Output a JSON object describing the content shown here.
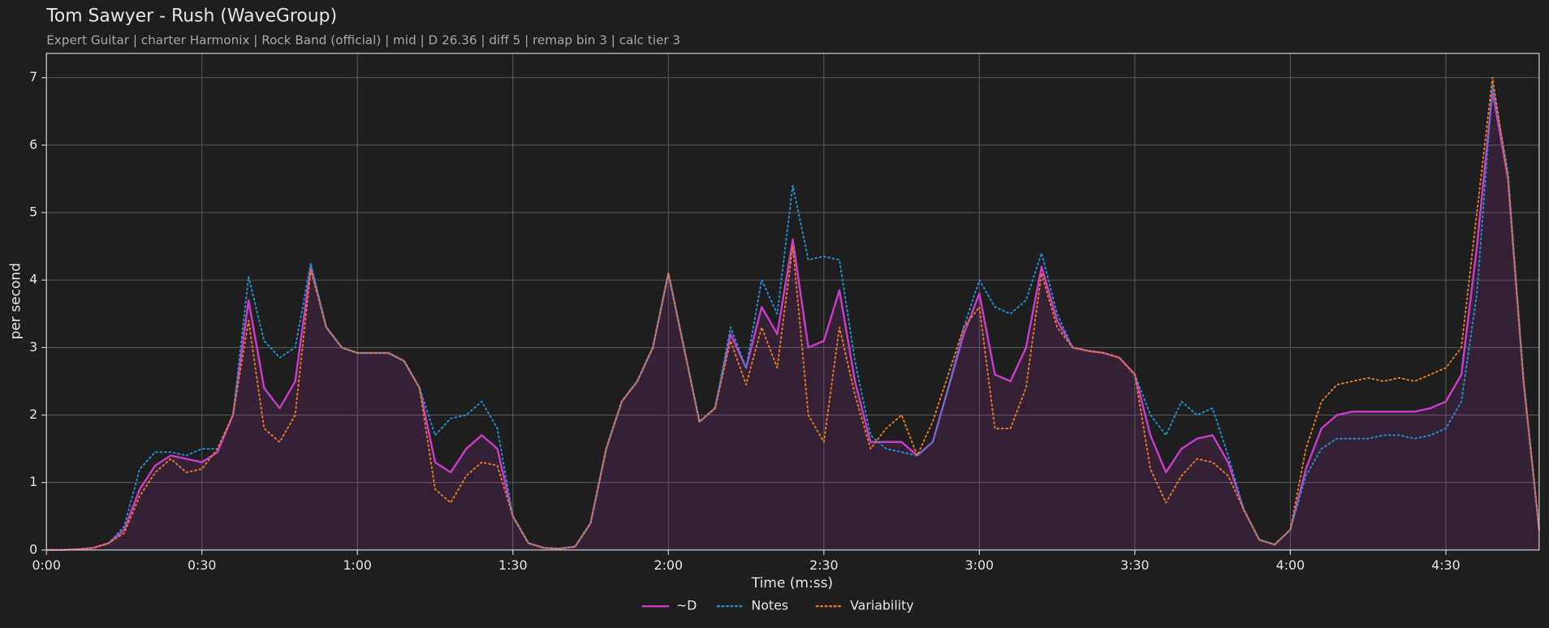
{
  "chart_data": {
    "type": "line",
    "title": "Tom Sawyer - Rush (WaveGroup)",
    "subtitle": "Expert Guitar  |  charter Harmonix  |  Rock Band (official)  |  mid  |  D 26.36  |  diff 5  |  remap bin 3  |  calc tier 3",
    "xlabel": "Time (m:ss)",
    "ylabel": "per second",
    "x": [
      0,
      3,
      6,
      9,
      12,
      15,
      18,
      21,
      24,
      27,
      30,
      33,
      36,
      39,
      42,
      45,
      48,
      51,
      54,
      57,
      60,
      63,
      66,
      69,
      72,
      75,
      78,
      81,
      84,
      87,
      90,
      93,
      96,
      99,
      102,
      105,
      108,
      111,
      114,
      117,
      120,
      123,
      126,
      129,
      132,
      135,
      138,
      141,
      144,
      147,
      150,
      153,
      156,
      159,
      162,
      165,
      168,
      171,
      174,
      177,
      180,
      183,
      186,
      189,
      192,
      195,
      198,
      201,
      204,
      207,
      210,
      213,
      216,
      219,
      222,
      225,
      228,
      231,
      234,
      237,
      240,
      243,
      246,
      249,
      252,
      255,
      258,
      261,
      264,
      267,
      270,
      273,
      276,
      279,
      282,
      285,
      288
    ],
    "series": [
      {
        "name": "~D",
        "color": "#c83cc8",
        "style": "solid",
        "fill": true,
        "values": [
          0,
          0,
          0.01,
          0.03,
          0.1,
          0.3,
          0.9,
          1.25,
          1.4,
          1.35,
          1.3,
          1.45,
          2.0,
          3.7,
          2.4,
          2.1,
          2.5,
          4.2,
          3.3,
          3.0,
          2.92,
          2.92,
          2.92,
          2.8,
          2.4,
          1.3,
          1.15,
          1.5,
          1.7,
          1.5,
          0.5,
          0.1,
          0.03,
          0.02,
          0.05,
          0.4,
          1.5,
          2.2,
          2.5,
          3.0,
          4.1,
          3.0,
          1.9,
          2.1,
          3.2,
          2.7,
          3.6,
          3.2,
          4.6,
          3.0,
          3.1,
          3.85,
          2.5,
          1.6,
          1.6,
          1.6,
          1.4,
          1.6,
          2.4,
          3.2,
          3.8,
          2.6,
          2.5,
          3.0,
          4.2,
          3.4,
          3.0,
          2.95,
          2.92,
          2.85,
          2.6,
          1.7,
          1.15,
          1.5,
          1.65,
          1.7,
          1.3,
          0.6,
          0.15,
          0.08,
          0.3,
          1.2,
          1.8,
          2.0,
          2.05,
          2.05,
          2.05,
          2.05,
          2.05,
          2.1,
          2.2,
          2.6,
          4.5,
          6.8,
          5.5,
          2.5,
          0.3
        ]
      },
      {
        "name": "Notes",
        "color": "#2290d0",
        "style": "dotted",
        "fill": false,
        "values": [
          0,
          0,
          0.01,
          0.03,
          0.1,
          0.35,
          1.2,
          1.45,
          1.45,
          1.4,
          1.5,
          1.5,
          2.0,
          4.05,
          3.1,
          2.85,
          3.0,
          4.25,
          3.3,
          3.0,
          2.92,
          2.92,
          2.92,
          2.8,
          2.4,
          1.7,
          1.95,
          2.0,
          2.2,
          1.8,
          0.5,
          0.1,
          0.03,
          0.02,
          0.05,
          0.4,
          1.5,
          2.2,
          2.5,
          3.0,
          4.1,
          3.0,
          1.9,
          2.1,
          3.3,
          2.7,
          4.0,
          3.5,
          5.4,
          4.3,
          4.35,
          4.3,
          2.8,
          1.7,
          1.5,
          1.45,
          1.4,
          1.6,
          2.4,
          3.3,
          4.0,
          3.6,
          3.5,
          3.7,
          4.4,
          3.5,
          3.0,
          2.95,
          2.92,
          2.85,
          2.6,
          2.0,
          1.7,
          2.2,
          2.0,
          2.1,
          1.4,
          0.6,
          0.15,
          0.08,
          0.3,
          1.1,
          1.5,
          1.65,
          1.65,
          1.65,
          1.7,
          1.7,
          1.65,
          1.7,
          1.8,
          2.2,
          3.8,
          6.9,
          5.6,
          2.5,
          0.3
        ]
      },
      {
        "name": "Variability",
        "color": "#e57a22",
        "style": "dotted",
        "fill": false,
        "values": [
          0,
          0,
          0.01,
          0.03,
          0.1,
          0.25,
          0.8,
          1.15,
          1.35,
          1.15,
          1.2,
          1.5,
          2.0,
          3.4,
          1.8,
          1.6,
          2.0,
          4.15,
          3.3,
          3.0,
          2.92,
          2.92,
          2.92,
          2.8,
          2.4,
          0.9,
          0.7,
          1.1,
          1.3,
          1.25,
          0.5,
          0.1,
          0.03,
          0.02,
          0.05,
          0.4,
          1.5,
          2.2,
          2.5,
          3.0,
          4.1,
          3.0,
          1.9,
          2.1,
          3.1,
          2.45,
          3.3,
          2.7,
          4.5,
          2.0,
          1.6,
          3.3,
          2.3,
          1.5,
          1.8,
          2.0,
          1.4,
          1.9,
          2.6,
          3.3,
          3.6,
          1.8,
          1.8,
          2.4,
          4.1,
          3.3,
          3.0,
          2.95,
          2.92,
          2.85,
          2.6,
          1.2,
          0.7,
          1.1,
          1.35,
          1.3,
          1.1,
          0.6,
          0.15,
          0.08,
          0.3,
          1.5,
          2.2,
          2.45,
          2.5,
          2.55,
          2.5,
          2.55,
          2.5,
          2.6,
          2.7,
          3.0,
          5.0,
          7.0,
          5.5,
          2.5,
          0.3
        ]
      }
    ],
    "xlim": [
      0,
      288
    ],
    "ylim": [
      0,
      7.36
    ],
    "xticks": [
      {
        "value": 0,
        "label": "0:00"
      },
      {
        "value": 30,
        "label": "0:30"
      },
      {
        "value": 60,
        "label": "1:00"
      },
      {
        "value": 90,
        "label": "1:30"
      },
      {
        "value": 120,
        "label": "2:00"
      },
      {
        "value": 150,
        "label": "2:30"
      },
      {
        "value": 180,
        "label": "3:00"
      },
      {
        "value": 210,
        "label": "3:30"
      },
      {
        "value": 240,
        "label": "4:00"
      },
      {
        "value": 270,
        "label": "4:30"
      }
    ],
    "yticks": [
      0,
      1,
      2,
      3,
      4,
      5,
      6,
      7
    ],
    "grid": true,
    "legend": "bottom"
  }
}
